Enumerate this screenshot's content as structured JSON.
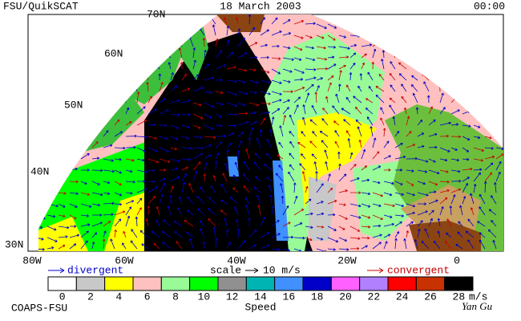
{
  "header": {
    "left": "FSU/QuikSCAT",
    "center": "18 March 2003",
    "right": "00:00"
  },
  "map": {
    "lat_labels": [
      "70N",
      "60N",
      "50N",
      "40N",
      "30N"
    ],
    "lon_labels": [
      "80W",
      "60W",
      "40W",
      "20W",
      "0"
    ]
  },
  "legend": {
    "divergent": "divergent",
    "scale": "scale",
    "scale_value": "10 m/s",
    "convergent": "convergent"
  },
  "colorbar": {
    "ticks": [
      0,
      2,
      4,
      6,
      8,
      10,
      12,
      14,
      16,
      18,
      20,
      22,
      24,
      26,
      28
    ],
    "units": "m/s",
    "colors": [
      "#ffffff",
      "#c8c8c8",
      "#ffff00",
      "#ffc0c0",
      "#98fb98",
      "#00ff00",
      "#909090",
      "#00b4b4",
      "#4090ff",
      "#0000c8",
      "#ff60ff",
      "#b080ff",
      "#ff0000",
      "#c83200",
      "#000000"
    ]
  },
  "footer": {
    "left": "COAPS-FSU",
    "center": "Speed",
    "signature": "Yan Gu"
  }
}
